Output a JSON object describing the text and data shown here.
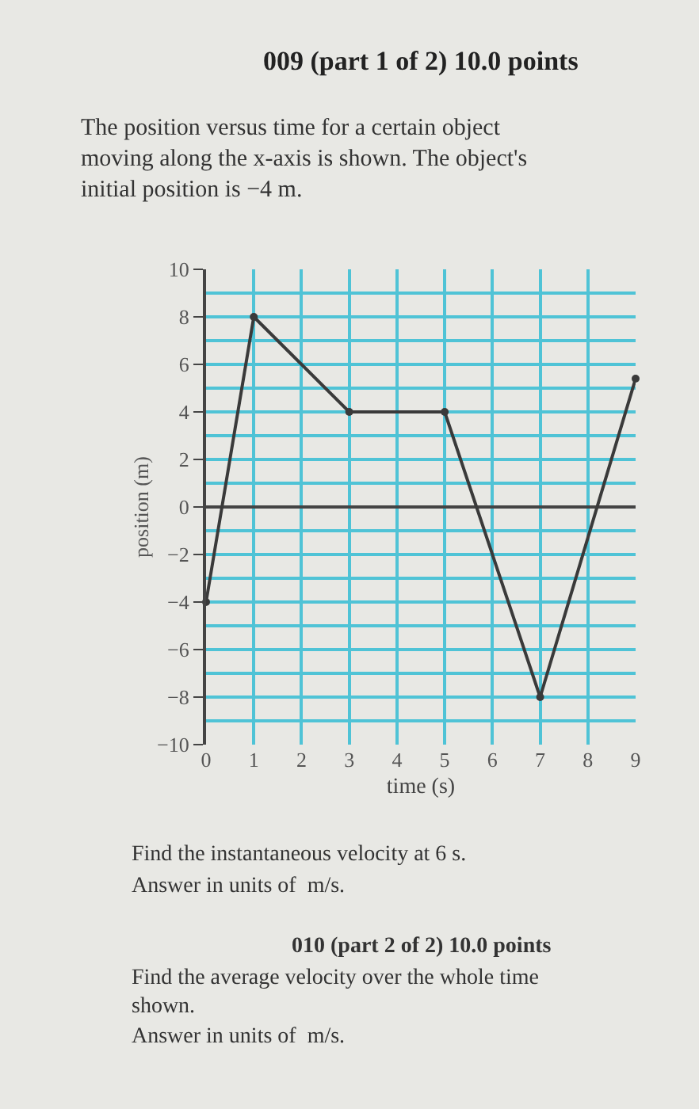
{
  "chart_data": {
    "type": "line",
    "title": "009 (part 1 of 2) 10.0 points",
    "subtitle": "The position versus time for a certain object moving along the x-axis is shown. The object's initial position is −4 m.",
    "xlabel": "time (s)",
    "ylabel": "position (m)",
    "x": [
      0,
      1,
      3,
      5,
      7,
      9
    ],
    "series": [
      {
        "color": "#3a3a3a",
        "values": [
          -4,
          8,
          4,
          4,
          -8,
          5.4
        ]
      }
    ],
    "xlim": [
      0,
      9
    ],
    "ylim": [
      -10,
      10
    ],
    "xticks": [
      0,
      1,
      2,
      3,
      4,
      5,
      6,
      7,
      8,
      9
    ],
    "yticks": [
      -10,
      -8,
      -6,
      -4,
      -2,
      0,
      2,
      4,
      6,
      8,
      10
    ],
    "grid": true,
    "marker": "circle",
    "line_style": "solid",
    "annotations": [
      "Find the instantaneous velocity at 6 s.",
      "Answer in units of  m/s.",
      "010 (part 2 of 2) 10.0 points",
      "Find the average velocity over the whole time shown.",
      "Answer in units of  m/s."
    ]
  }
}
